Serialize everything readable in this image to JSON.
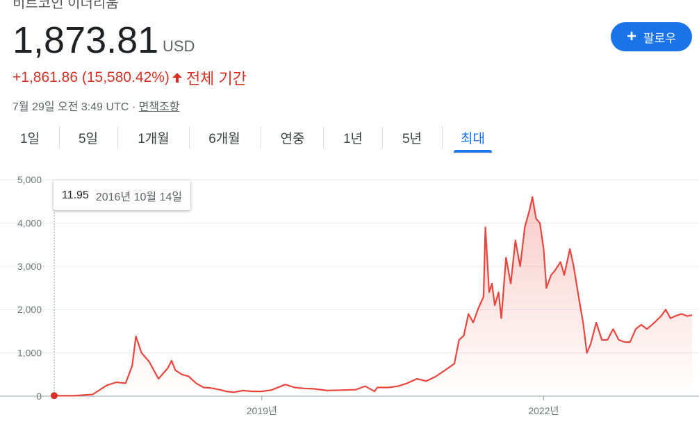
{
  "header": {
    "clipped_title": "비트코인 이더리움",
    "price": "1,873.81",
    "currency": "USD",
    "follow_label": "팔로우",
    "change_text": "+1,861.86 (15,580.42%)",
    "change_period": "전체 기간",
    "timestamp": "7월 29일 오전 3:49 UTC · ",
    "disclaimer": "면책조항"
  },
  "tabs": [
    {
      "label": "1일",
      "active": false
    },
    {
      "label": "5일",
      "active": false
    },
    {
      "label": "1개월",
      "active": false
    },
    {
      "label": "6개월",
      "active": false
    },
    {
      "label": "연중",
      "active": false
    },
    {
      "label": "1년",
      "active": false
    },
    {
      "label": "5년",
      "active": false
    },
    {
      "label": "최대",
      "active": true
    }
  ],
  "tooltip": {
    "value": "11.95",
    "date": "2016년 10월 14일"
  },
  "colors": {
    "accent": "#1a73e8",
    "negative_positive_red": "#d93025",
    "line": "#e8453c"
  },
  "chart_data": {
    "type": "area",
    "title": "",
    "xlabel": "",
    "ylabel": "",
    "ylim": [
      0,
      5000
    ],
    "yticks": [
      "0",
      "1,000",
      "2,000",
      "3,000",
      "4,000",
      "5,000"
    ],
    "xticks": [
      {
        "label": "2019년",
        "x": 2019.0
      },
      {
        "label": "2022년",
        "x": 2022.0
      }
    ],
    "x": [
      2016.79,
      2017.0,
      2017.2,
      2017.35,
      2017.45,
      2017.55,
      2017.62,
      2017.66,
      2017.72,
      2017.8,
      2017.9,
      2018.0,
      2018.04,
      2018.08,
      2018.15,
      2018.22,
      2018.3,
      2018.38,
      2018.45,
      2018.55,
      2018.62,
      2018.7,
      2018.8,
      2018.9,
      2019.0,
      2019.1,
      2019.25,
      2019.35,
      2019.45,
      2019.55,
      2019.7,
      2019.85,
      2020.0,
      2020.1,
      2020.2,
      2020.23,
      2020.35,
      2020.45,
      2020.55,
      2020.65,
      2020.75,
      2020.85,
      2020.95,
      2021.05,
      2021.1,
      2021.15,
      2021.2,
      2021.25,
      2021.3,
      2021.36,
      2021.38,
      2021.42,
      2021.45,
      2021.48,
      2021.52,
      2021.55,
      2021.6,
      2021.65,
      2021.7,
      2021.75,
      2021.8,
      2021.85,
      2021.88,
      2021.92,
      2021.96,
      2022.0,
      2022.03,
      2022.08,
      2022.12,
      2022.18,
      2022.22,
      2022.28,
      2022.32,
      2022.38,
      2022.42,
      2022.46,
      2022.5,
      2022.56,
      2022.62,
      2022.68,
      2022.74,
      2022.8,
      2022.86,
      2022.92,
      2022.98,
      2023.04,
      2023.1,
      2023.18,
      2023.25,
      2023.3,
      2023.35,
      2023.4,
      2023.47,
      2023.53,
      2023.58
    ],
    "values": [
      11.95,
      10,
      40,
      250,
      320,
      300,
      700,
      1380,
      1000,
      800,
      400,
      650,
      820,
      600,
      500,
      460,
      300,
      200,
      190,
      150,
      110,
      90,
      130,
      110,
      110,
      140,
      270,
      200,
      180,
      170,
      130,
      140,
      150,
      230,
      110,
      200,
      200,
      230,
      300,
      400,
      350,
      450,
      600,
      750,
      1300,
      1400,
      1900,
      1700,
      2000,
      2300,
      3900,
      2400,
      2600,
      2100,
      2400,
      1800,
      3200,
      2600,
      3600,
      3000,
      3900,
      4300,
      4600,
      4100,
      4000,
      3400,
      2500,
      2800,
      2900,
      3100,
      2800,
      3400,
      3000,
      2200,
      1700,
      1000,
      1200,
      1700,
      1300,
      1300,
      1550,
      1300,
      1250,
      1250,
      1550,
      1650,
      1550,
      1700,
      1850,
      2000,
      1800,
      1850,
      1900,
      1850,
      1873.81
    ],
    "xlim": [
      2016.79,
      2023.58
    ],
    "grid": true,
    "legend": "none"
  }
}
